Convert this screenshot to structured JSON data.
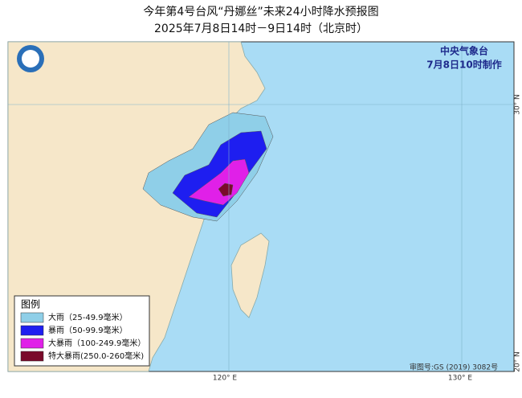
{
  "header": {
    "title": "今年第4号台风“丹娜丝”未来24小时降水预报图",
    "subtitle": "2025年7月8日14时－9日14时（北京时）"
  },
  "agency": {
    "name": "中央气象台",
    "issued": "7月8日10时制作"
  },
  "axes": {
    "lon": [
      "120° E",
      "130° E"
    ],
    "lat": [
      "30° N",
      "20° N"
    ]
  },
  "map_number": "审图号:GS (2019) 3082号",
  "legend": {
    "title": "图例",
    "items": [
      {
        "label": "大雨（25-49.9毫米）",
        "color": "#8fcfe8"
      },
      {
        "label": "暴雨（50-99.9毫米）",
        "color": "#1e1ef0"
      },
      {
        "label": "大暴雨（100-249.9毫米）",
        "color": "#e020e8"
      },
      {
        "label": "特大暴雨(250.0-260毫米)",
        "color": "#7a0a2a"
      }
    ]
  }
}
